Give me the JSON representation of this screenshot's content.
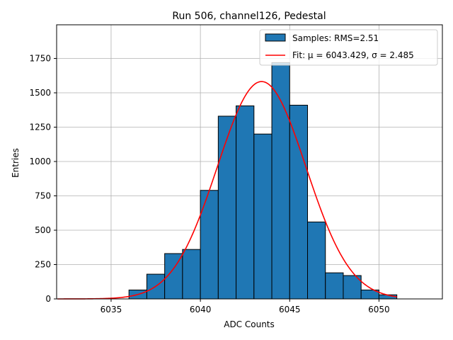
{
  "chart_data": {
    "type": "bar",
    "title": "Run 506, channel126, Pedestal",
    "xlabel": "ADC Counts",
    "ylabel": "Entries",
    "xlim": [
      6031.95,
      6053.55
    ],
    "ylim": [
      0,
      1995
    ],
    "xticks": [
      6035,
      6040,
      6045,
      6050
    ],
    "yticks": [
      0,
      250,
      500,
      750,
      1000,
      1250,
      1500,
      1750
    ],
    "grid": true,
    "legend_position": "top-right",
    "histogram": {
      "name": "Samples: RMS=2.51",
      "color": "#1f77b4",
      "bins": [
        {
          "x0": 6036,
          "x1": 6037,
          "count": 65
        },
        {
          "x0": 6037,
          "x1": 6038,
          "count": 180
        },
        {
          "x0": 6038,
          "x1": 6039,
          "count": 330
        },
        {
          "x0": 6039,
          "x1": 6040,
          "count": 360
        },
        {
          "x0": 6040,
          "x1": 6041,
          "count": 790
        },
        {
          "x0": 6041,
          "x1": 6042,
          "count": 1330
        },
        {
          "x0": 6042,
          "x1": 6043,
          "count": 1405
        },
        {
          "x0": 6043,
          "x1": 6044,
          "count": 1200
        },
        {
          "x0": 6044,
          "x1": 6045,
          "count": 1720
        },
        {
          "x0": 6045,
          "x1": 6046,
          "count": 1410
        },
        {
          "x0": 6046,
          "x1": 6047,
          "count": 560
        },
        {
          "x0": 6047,
          "x1": 6048,
          "count": 190
        },
        {
          "x0": 6048,
          "x1": 6049,
          "count": 170
        },
        {
          "x0": 6049,
          "x1": 6050,
          "count": 65
        },
        {
          "x0": 6050,
          "x1": 6051,
          "count": 30
        }
      ]
    },
    "fit": {
      "name": "Fit: μ = 6043.429, σ = 2.485",
      "color": "#ff0000",
      "mu": 6043.429,
      "sigma": 2.485,
      "amplitude": 1582,
      "x_range": [
        6032,
        6051
      ]
    }
  }
}
